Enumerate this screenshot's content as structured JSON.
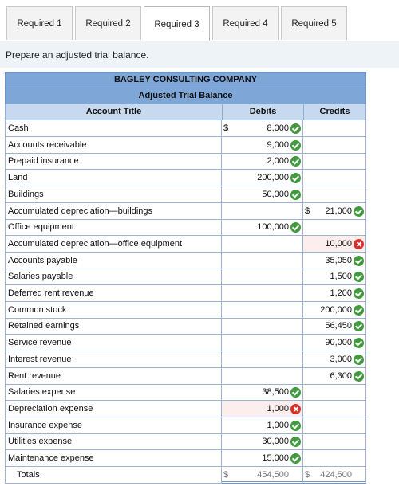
{
  "tabs": [
    {
      "label": "Required 1",
      "active": false
    },
    {
      "label": "Required 2",
      "active": false
    },
    {
      "label": "Required 3",
      "active": true
    },
    {
      "label": "Required 4",
      "active": false
    },
    {
      "label": "Required 5",
      "active": false
    }
  ],
  "prompt": "Prepare an adjusted trial balance.",
  "table": {
    "company": "BAGLEY CONSULTING COMPANY",
    "title": "Adjusted Trial Balance",
    "headers": {
      "account": "Account Title",
      "debits": "Debits",
      "credits": "Credits"
    },
    "rows": [
      {
        "account": "Cash",
        "debit": "8,000",
        "debit_dollar": "$",
        "debit_status": "correct",
        "credit": "",
        "credit_dollar": "",
        "credit_status": ""
      },
      {
        "account": "Accounts receivable",
        "debit": "9,000",
        "debit_dollar": "",
        "debit_status": "correct",
        "credit": "",
        "credit_dollar": "",
        "credit_status": ""
      },
      {
        "account": "Prepaid insurance",
        "debit": "2,000",
        "debit_dollar": "",
        "debit_status": "correct",
        "credit": "",
        "credit_dollar": "",
        "credit_status": ""
      },
      {
        "account": "Land",
        "debit": "200,000",
        "debit_dollar": "",
        "debit_status": "correct",
        "credit": "",
        "credit_dollar": "",
        "credit_status": ""
      },
      {
        "account": "Buildings",
        "debit": "50,000",
        "debit_dollar": "",
        "debit_status": "correct",
        "credit": "",
        "credit_dollar": "",
        "credit_status": ""
      },
      {
        "account": "Accumulated depreciation—buildings",
        "debit": "",
        "debit_dollar": "",
        "debit_status": "",
        "credit": "21,000",
        "credit_dollar": "$",
        "credit_status": "correct"
      },
      {
        "account": "Office equipment",
        "debit": "100,000",
        "debit_dollar": "",
        "debit_status": "correct",
        "credit": "",
        "credit_dollar": "",
        "credit_status": ""
      },
      {
        "account": "Accumulated depreciation—office equipment",
        "debit": "",
        "debit_dollar": "",
        "debit_status": "",
        "credit": "10,000",
        "credit_dollar": "",
        "credit_status": "incorrect"
      },
      {
        "account": "Accounts payable",
        "debit": "",
        "debit_dollar": "",
        "debit_status": "",
        "credit": "35,050",
        "credit_dollar": "",
        "credit_status": "correct"
      },
      {
        "account": "Salaries payable",
        "debit": "",
        "debit_dollar": "",
        "debit_status": "",
        "credit": "1,500",
        "credit_dollar": "",
        "credit_status": "correct"
      },
      {
        "account": "Deferred rent revenue",
        "debit": "",
        "debit_dollar": "",
        "debit_status": "",
        "credit": "1,200",
        "credit_dollar": "",
        "credit_status": "correct"
      },
      {
        "account": "Common stock",
        "debit": "",
        "debit_dollar": "",
        "debit_status": "",
        "credit": "200,000",
        "credit_dollar": "",
        "credit_status": "correct"
      },
      {
        "account": "Retained earnings",
        "debit": "",
        "debit_dollar": "",
        "debit_status": "",
        "credit": "56,450",
        "credit_dollar": "",
        "credit_status": "correct"
      },
      {
        "account": "Service revenue",
        "debit": "",
        "debit_dollar": "",
        "debit_status": "",
        "credit": "90,000",
        "credit_dollar": "",
        "credit_status": "correct"
      },
      {
        "account": "Interest revenue",
        "debit": "",
        "debit_dollar": "",
        "debit_status": "",
        "credit": "3,000",
        "credit_dollar": "",
        "credit_status": "correct"
      },
      {
        "account": "Rent revenue",
        "debit": "",
        "debit_dollar": "",
        "debit_status": "",
        "credit": "6,300",
        "credit_dollar": "",
        "credit_status": "correct"
      },
      {
        "account": "Salaries expense",
        "debit": "38,500",
        "debit_dollar": "",
        "debit_status": "correct",
        "credit": "",
        "credit_dollar": "",
        "credit_status": ""
      },
      {
        "account": "Depreciation expense",
        "debit": "1,000",
        "debit_dollar": "",
        "debit_status": "incorrect",
        "credit": "",
        "credit_dollar": "",
        "credit_status": ""
      },
      {
        "account": "Insurance expense",
        "debit": "1,000",
        "debit_dollar": "",
        "debit_status": "correct",
        "credit": "",
        "credit_dollar": "",
        "credit_status": ""
      },
      {
        "account": "Utilities expense",
        "debit": "30,000",
        "debit_dollar": "",
        "debit_status": "correct",
        "credit": "",
        "credit_dollar": "",
        "credit_status": ""
      },
      {
        "account": "Maintenance expense",
        "debit": "15,000",
        "debit_dollar": "",
        "debit_status": "correct",
        "credit": "",
        "credit_dollar": "",
        "credit_status": ""
      }
    ],
    "totals": {
      "label": "Totals",
      "debit_dollar": "$",
      "debit": "454,500",
      "credit_dollar": "$",
      "credit": "424,500"
    }
  },
  "colors": {
    "header": "#7ea7d8",
    "subheader": "#c7d9ee",
    "correct": "#3f9b3b",
    "incorrect": "#d9302c",
    "prompt_bg": "#eef3f8"
  }
}
